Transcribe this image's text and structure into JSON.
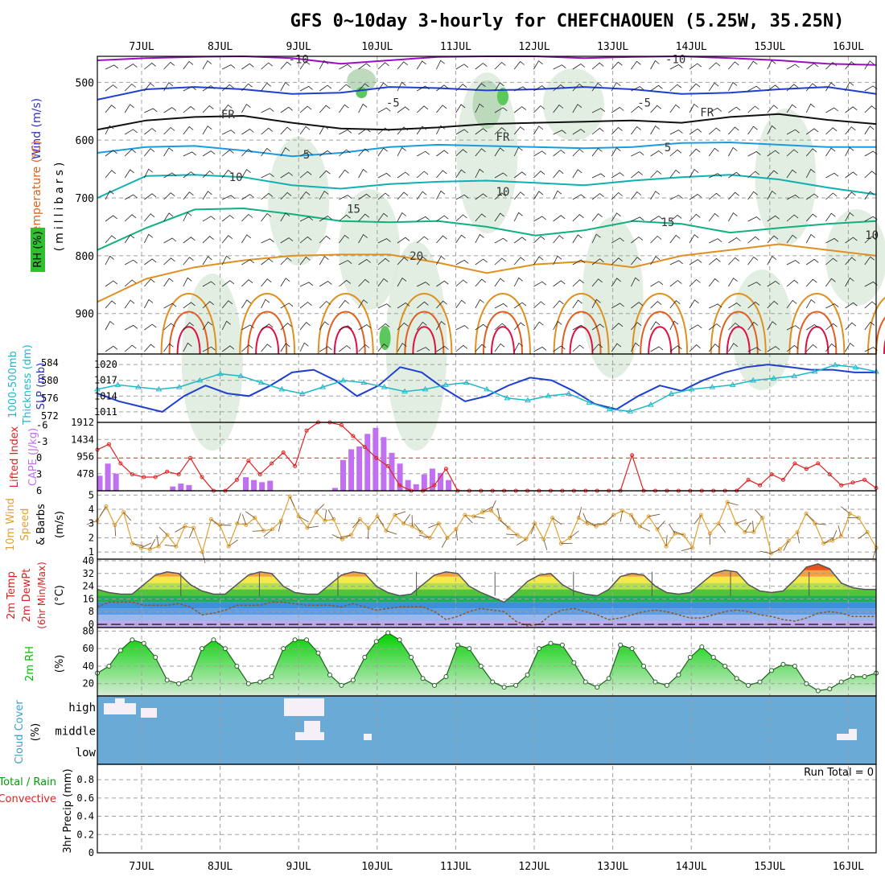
{
  "title": "GFS 0~10day 3-hourly for CHEFCHAOUEN (5.25W, 35.25N)",
  "dates": [
    "7JUL",
    "8JUL",
    "9JUL",
    "10JUL",
    "11JUL",
    "12JUL",
    "13JUL",
    "14JUL",
    "15JUL",
    "16JUL"
  ],
  "colors": {
    "rh": "#2fbf2f",
    "temp_label": "#e0621b",
    "wind_label": "#3030c0",
    "slp": "#1f3fd0",
    "thick": "#20b8c8",
    "li": "#e02020",
    "cape": "#c070f0",
    "wind10": "#e0a030",
    "rh2m": "#00c000",
    "cloud_bg": "#6aaad6",
    "cloud": "#f4f0f6"
  },
  "labels": {
    "pressure_axis": "(millibars)",
    "wind_label": "Wind (m/s)",
    "temp_label": "Temperature (°C)",
    "rh_label": "RH (%)",
    "thick_label": "Thickness (dm)",
    "thick_label2": "1000-500mb",
    "slp_label": "SLP (mb)",
    "li_label": "Lifted Index",
    "cape_label": "CAPE (J/kg)",
    "wind10_label": "10m Wind",
    "wind10_label2": "Speed",
    "wind10_label3": "& Barbs",
    "wind10_unit": "(m/s)",
    "temp2m_label": "2m Temp",
    "dewpt_label": "2m DewPt",
    "minmax_label": "(6hr Min/Max)",
    "temp_unit": "(°C)",
    "rh2m_label": "2m RH",
    "rh2m_unit": "(%)",
    "cloud_label": "Cloud Cover",
    "cloud_unit": "(%)",
    "precip_total": "Total / Rain",
    "precip_conv": "Convective",
    "precip_label": "3hr Precip (mm)",
    "run_total": "Run Total = 0"
  },
  "chart_data": {
    "type": "meteogram",
    "x_days": [
      "7JUL",
      "8JUL",
      "9JUL",
      "10JUL",
      "11JUL",
      "12JUL",
      "13JUL",
      "14JUL",
      "15JUL",
      "16JUL"
    ],
    "upper_air": {
      "pressure_ticks": [
        500,
        600,
        700,
        800,
        900
      ],
      "contour_labels": [
        {
          "text": "-10",
          "p": 460,
          "t": 2.0
        },
        {
          "text": "-10",
          "p": 460,
          "t": 6.8
        },
        {
          "text": "-5",
          "p": 535,
          "t": 3.2
        },
        {
          "text": "-5",
          "p": 535,
          "t": 6.4
        },
        {
          "text": "FR",
          "p": 555,
          "t": 1.1
        },
        {
          "text": "FR",
          "p": 594,
          "t": 4.6
        },
        {
          "text": "FR",
          "p": 552,
          "t": 7.2
        },
        {
          "text": "5",
          "p": 625,
          "t": 2.1
        },
        {
          "text": "5",
          "p": 612,
          "t": 6.7
        },
        {
          "text": "10",
          "p": 664,
          "t": 1.2
        },
        {
          "text": "10",
          "p": 689,
          "t": 4.6
        },
        {
          "text": "15",
          "p": 719,
          "t": 2.7
        },
        {
          "text": "15",
          "p": 742,
          "t": 6.7
        },
        {
          "text": "20",
          "p": 800,
          "t": 3.5
        },
        {
          "text": "10",
          "p": 764,
          "t": 9.3
        }
      ],
      "isotherms": [
        {
          "label": "-10",
          "color": "#9a10c0",
          "p": [
            462,
            458,
            456,
            455,
            458,
            468,
            462,
            456,
            452,
            454,
            458,
            456,
            452,
            458,
            462,
            468,
            470
          ]
        },
        {
          "label": "-5",
          "color": "#1f3fd0",
          "p": [
            530,
            512,
            508,
            512,
            520,
            518,
            508,
            510,
            514,
            512,
            508,
            512,
            520,
            518,
            512,
            508,
            520
          ]
        },
        {
          "label": "FR",
          "color": "#101010",
          "p": [
            582,
            566,
            560,
            558,
            570,
            580,
            582,
            578,
            572,
            570,
            568,
            566,
            570,
            560,
            555,
            565,
            572
          ]
        },
        {
          "label": "5",
          "color": "#1a9be0",
          "p": [
            622,
            612,
            610,
            618,
            628,
            622,
            612,
            608,
            610,
            612,
            614,
            612,
            605,
            604,
            608,
            612,
            612
          ]
        },
        {
          "label": "10",
          "color": "#10b0b0",
          "p": [
            700,
            662,
            660,
            664,
            678,
            684,
            676,
            672,
            670,
            674,
            678,
            670,
            664,
            660,
            668,
            682,
            694
          ]
        },
        {
          "label": "15",
          "color": "#10b080",
          "p": [
            790,
            752,
            720,
            718,
            728,
            740,
            742,
            740,
            750,
            765,
            756,
            740,
            745,
            760,
            752,
            745,
            740
          ]
        },
        {
          "label": "20",
          "color": "#e09020",
          "p": [
            880,
            840,
            820,
            808,
            800,
            798,
            798,
            812,
            830,
            815,
            810,
            820,
            800,
            790,
            780,
            790,
            800
          ]
        }
      ]
    },
    "slp_thickness": {
      "slp_ticks": [
        1011,
        1014,
        1017,
        1020
      ],
      "thickness_ticks": [
        572,
        576,
        580,
        584
      ],
      "slp": [
        1014.5,
        1013,
        1012,
        1011,
        1014,
        1016,
        1014.5,
        1014,
        1016,
        1018.5,
        1019,
        1017,
        1014,
        1016,
        1019.5,
        1018.5,
        1015.5,
        1013,
        1014,
        1016,
        1017.5,
        1017,
        1015,
        1012.5,
        1011.5,
        1014,
        1016,
        1015,
        1017,
        1018.5,
        1019.5,
        1020,
        1019.5,
        1019,
        1019,
        1018.5,
        1018.5
      ],
      "thickness": [
        578,
        579,
        578.5,
        578,
        578.5,
        580,
        581.5,
        581,
        579.5,
        578,
        577,
        578.5,
        580,
        579.5,
        578.5,
        577.5,
        578,
        579,
        579.5,
        578,
        576,
        575.5,
        576.5,
        577,
        575,
        573.5,
        573,
        574.5,
        577,
        578,
        578.5,
        579,
        580,
        580.5,
        581,
        582,
        583.5,
        583,
        582
      ]
    },
    "lifted_cape": {
      "li_ticks": [
        6,
        3,
        0,
        -3,
        -6
      ],
      "cape_ticks": [
        478,
        956,
        1434,
        1912
      ],
      "lifted_index": [
        -1.5,
        -2.5,
        1,
        3,
        3.5,
        3.5,
        2.5,
        3,
        0,
        3.5,
        6,
        6,
        4,
        0.5,
        3,
        1,
        -1,
        1.5,
        -5,
        -8,
        -7,
        -6,
        -4,
        -2,
        0,
        1.5,
        5,
        6,
        6,
        5,
        2,
        6,
        6,
        6,
        6,
        6,
        6,
        6,
        6,
        6,
        6,
        6,
        6,
        6,
        6,
        6,
        -0.5,
        6,
        6,
        6,
        6,
        6,
        6,
        6,
        6,
        6,
        4,
        5,
        3,
        4,
        1,
        2,
        1,
        3,
        5,
        4.5,
        4,
        5.5
      ],
      "cape": [
        420,
        760,
        480,
        0,
        0,
        0,
        0,
        0,
        0,
        120,
        200,
        160,
        0,
        0,
        0,
        0,
        0,
        0,
        380,
        300,
        240,
        280,
        0,
        0,
        0,
        0,
        0,
        0,
        0,
        80,
        860,
        1160,
        1240,
        1590,
        1760,
        1500,
        1060,
        760,
        300,
        180,
        460,
        620,
        500,
        300,
        0,
        0,
        0,
        0,
        0
      ]
    },
    "wind10m": {
      "ticks": [
        1,
        2,
        3,
        4,
        5
      ],
      "speed": [
        3.2,
        4.2,
        2.9,
        3.8,
        1.6,
        1.3,
        1.2,
        1.4,
        2.2,
        1.4,
        2.8,
        2.7,
        1.0,
        3.3,
        2.9,
        1.4,
        3.0,
        2.9,
        3.4,
        2.5,
        2.6,
        3.2,
        4.9,
        3.5,
        2.7,
        3.8,
        3.2,
        3.3,
        1.9,
        2.2,
        3.3,
        2.7,
        3.5,
        2.5,
        3.6,
        3.0,
        2.8,
        2.4,
        2.0,
        3.0,
        2.0,
        2.6,
        3.6,
        3.5,
        3.8,
        3.9,
        3.3,
        2.7,
        2.2,
        1.9,
        3.0,
        1.9,
        3.4,
        1.6,
        2.0,
        3.4,
        3.0,
        2.8,
        3.0,
        3.6,
        3.9,
        3.6,
        2.8,
        3.5,
        2.6,
        1.4,
        2.3,
        2.2,
        1.3,
        3.6,
        2.3,
        3.0,
        4.5,
        3.0,
        2.4,
        2.4,
        3.4,
        0.9,
        1.2,
        1.8,
        2.4,
        3.7,
        3.0,
        1.6,
        1.8,
        2.1,
        3.7,
        3.4,
        2.4,
        1.3
      ]
    },
    "temp2m": {
      "ticks": [
        0,
        8,
        16,
        24,
        32,
        40
      ],
      "temp": [
        22,
        20,
        19,
        19,
        25,
        31,
        33,
        32,
        25,
        21,
        19,
        19,
        25,
        31,
        33,
        32,
        24,
        20,
        19,
        19,
        25,
        31,
        33,
        32,
        24,
        20,
        18,
        19,
        25,
        31,
        33,
        32,
        24,
        20,
        17,
        14,
        20,
        27,
        31,
        32,
        25,
        21,
        19,
        18,
        22,
        30,
        32,
        31,
        24,
        20,
        19,
        20,
        26,
        32,
        34,
        33,
        25,
        21,
        20,
        21,
        28,
        36,
        38,
        35,
        26,
        23,
        22,
        22
      ],
      "dewpt": [
        11,
        14,
        14,
        14,
        12,
        12,
        12,
        13,
        11,
        6,
        7,
        9,
        12,
        12,
        12,
        14,
        14,
        13,
        12,
        12,
        12,
        11,
        13,
        11,
        9,
        10,
        11,
        11,
        11,
        8,
        3,
        5,
        8,
        10,
        9,
        8,
        2,
        -1,
        0,
        6,
        9,
        10,
        8,
        6,
        3,
        4,
        6,
        8,
        9,
        8,
        6,
        4,
        4,
        6,
        8,
        9,
        8,
        6,
        5,
        3,
        2,
        4,
        7,
        8,
        7,
        5,
        5,
        5
      ]
    },
    "rh2m": {
      "ticks": [
        20,
        40,
        60,
        80
      ],
      "rh": [
        32,
        40,
        58,
        70,
        66,
        50,
        24,
        20,
        26,
        60,
        70,
        60,
        40,
        20,
        22,
        28,
        60,
        70,
        70,
        55,
        30,
        18,
        24,
        50,
        68,
        78,
        70,
        50,
        26,
        18,
        28,
        64,
        60,
        40,
        22,
        16,
        18,
        30,
        60,
        66,
        64,
        44,
        22,
        16,
        26,
        64,
        60,
        40,
        22,
        18,
        30,
        50,
        62,
        50,
        40,
        26,
        18,
        22,
        35,
        42,
        40,
        20,
        12,
        14,
        22,
        28,
        28,
        32
      ]
    },
    "cloud_cover": {
      "levels": [
        "high",
        "middle",
        "low"
      ]
    },
    "precip": {
      "ticks": [
        0,
        0.2,
        0.4,
        0.6,
        0.8
      ],
      "run_total": "Run Total = 0",
      "values": []
    }
  }
}
